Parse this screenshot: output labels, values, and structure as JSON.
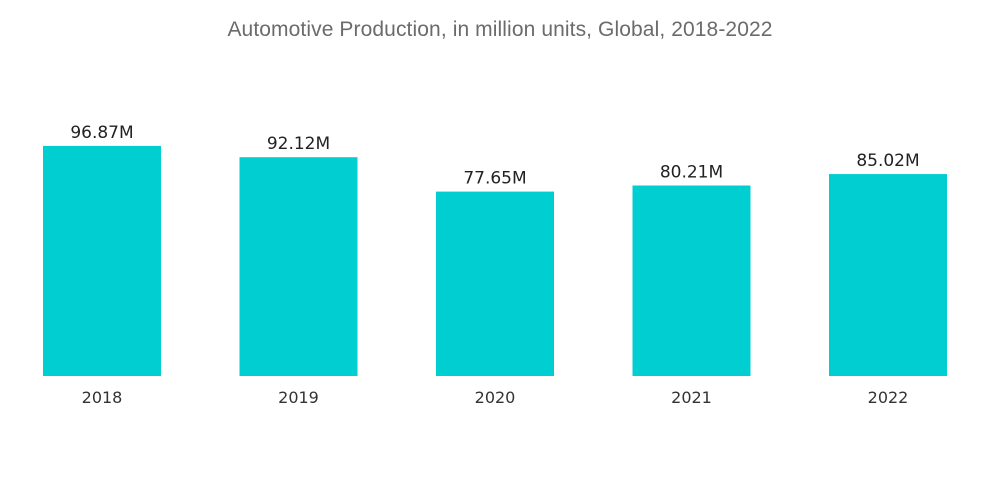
{
  "chart_data": {
    "type": "bar",
    "title": "Automotive Production, in million units, Global, 2018-2022",
    "xlabel": "",
    "ylabel": "",
    "categories": [
      "2018",
      "2019",
      "2020",
      "2021",
      "2022"
    ],
    "values": [
      96.87,
      92.12,
      77.65,
      80.21,
      85.02
    ],
    "data_labels": [
      "96.87M",
      "92.12M",
      "77.65M",
      "80.21M",
      "85.02M"
    ],
    "ylim": [
      0,
      100
    ],
    "bar_color": "#00ced1",
    "grid": false,
    "legend": "none"
  }
}
